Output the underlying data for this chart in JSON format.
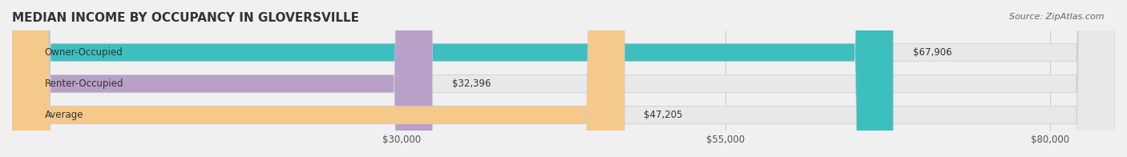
{
  "title": "MEDIAN INCOME BY OCCUPANCY IN GLOVERSVILLE",
  "source": "Source: ZipAtlas.com",
  "categories": [
    "Owner-Occupied",
    "Renter-Occupied",
    "Average"
  ],
  "values": [
    67906,
    32396,
    47205
  ],
  "labels": [
    "$67,906",
    "$32,396",
    "$47,205"
  ],
  "bar_colors": [
    "#3dbfbf",
    "#b8a0c8",
    "#f5c98a"
  ],
  "bar_edge_colors": [
    "#2aa0a0",
    "#9a80aa",
    "#e0a060"
  ],
  "background_color": "#f0f0f0",
  "bar_bg_color": "#e8e8e8",
  "xlim": [
    0,
    85000
  ],
  "xticks": [
    30000,
    55000,
    80000
  ],
  "xticklabels": [
    "$30,000",
    "$55,000",
    "$80,000"
  ],
  "title_fontsize": 11,
  "label_fontsize": 8.5,
  "tick_fontsize": 8.5,
  "source_fontsize": 8
}
